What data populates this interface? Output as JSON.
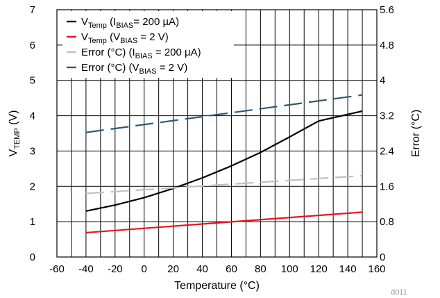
{
  "chart_data": {
    "type": "line",
    "code": "d011",
    "xlabel": "Temperature (°C)",
    "xlim": [
      -60,
      160
    ],
    "xticks": [
      -60,
      -40,
      -20,
      0,
      20,
      40,
      60,
      80,
      100,
      120,
      140,
      160
    ],
    "ylabel_left": {
      "main": "V",
      "sub": "TEMP",
      "suffix": " (V)"
    },
    "ylim_left": [
      0,
      7
    ],
    "yticks_left": [
      0,
      1,
      2,
      3,
      4,
      5,
      6,
      7
    ],
    "ylabel_right": "Error (°C)",
    "ylim_right": [
      0,
      5.6
    ],
    "yticks_right": [
      "0",
      "0.8",
      "1.6",
      "2.4",
      "3.2",
      "4",
      "4.8",
      "5.6"
    ],
    "grid": true,
    "legend_position": "top-left",
    "series": [
      {
        "legend": [
          [
            "V",
            ""
          ],
          [
            "Temp",
            "sub"
          ],
          [
            " (I",
            ""
          ],
          [
            "BIAS",
            "sub"
          ],
          [
            "= 200 µA)",
            ""
          ]
        ],
        "color": "#000000",
        "dash": "solid",
        "axis": "left",
        "x": [
          -40,
          -20,
          0,
          20,
          40,
          60,
          80,
          100,
          120,
          150
        ],
        "y": [
          1.3,
          1.47,
          1.68,
          1.94,
          2.24,
          2.58,
          2.96,
          3.4,
          3.85,
          4.13
        ]
      },
      {
        "legend": [
          [
            "V",
            ""
          ],
          [
            "Temp",
            "sub"
          ],
          [
            " (V",
            ""
          ],
          [
            "BIAS",
            "sub"
          ],
          [
            " = 2 V)",
            ""
          ]
        ],
        "color": "#e8141c",
        "dash": "solid",
        "axis": "left",
        "x": [
          -40,
          150
        ],
        "y": [
          0.69,
          1.27
        ]
      },
      {
        "legend": [
          [
            "Error (°C) (I",
            ""
          ],
          [
            "BIAS",
            "sub"
          ],
          [
            " = 200 µA)",
            ""
          ]
        ],
        "color": "#c0c0c0",
        "dash": "long",
        "axis": "right",
        "x": [
          -40,
          150
        ],
        "y": [
          1.44,
          1.84
        ]
      },
      {
        "legend": [
          [
            "Error (°C) (V",
            ""
          ],
          [
            "BIAS",
            "sub"
          ],
          [
            " = 2 V)",
            ""
          ]
        ],
        "color": "#2e5a72",
        "dash": "long",
        "axis": "right",
        "x": [
          -40,
          150
        ],
        "y": [
          2.82,
          3.67
        ]
      }
    ]
  }
}
